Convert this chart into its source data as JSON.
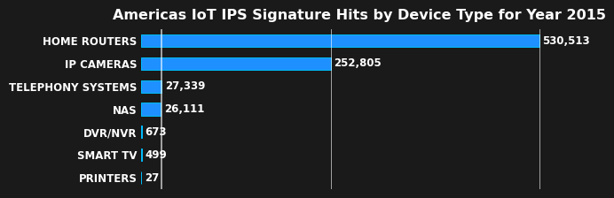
{
  "title": "Americas IoT IPS Signature Hits by Device Type for Year 2015",
  "categories": [
    "HOME ROUTERS",
    "IP CAMERAS",
    "TELEPHONY SYSTEMS",
    "NAS",
    "DVR/NVR",
    "SMART TV",
    "PRINTERS"
  ],
  "values": [
    530513,
    252805,
    27339,
    26111,
    673,
    499,
    27
  ],
  "labels": [
    "530,513",
    "252,805",
    "27,339",
    "26,111",
    "673",
    "499",
    "27"
  ],
  "bar_color": "#1E90FF",
  "bar_edge_color": "#00BFFF",
  "background_color": "#1a1a1a",
  "text_color": "#ffffff",
  "title_color": "#ffffff",
  "bar_height": 0.55,
  "xlim": [
    0,
    580000
  ],
  "title_fontsize": 11.5,
  "label_fontsize": 8.5,
  "tick_fontsize": 8.5
}
